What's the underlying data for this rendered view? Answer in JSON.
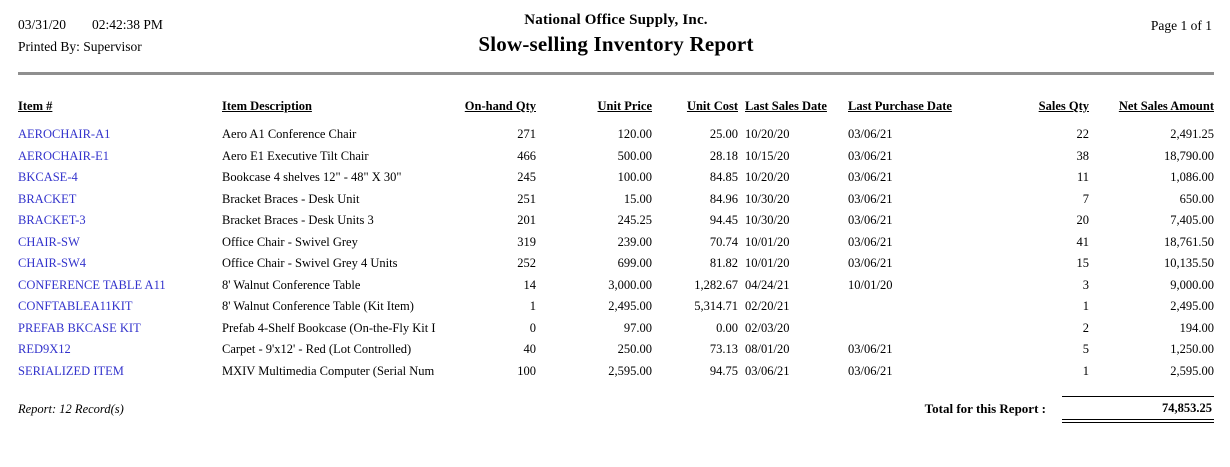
{
  "header": {
    "date": "03/31/20",
    "time": "02:42:38 PM",
    "printed_by": "Printed By: Supervisor",
    "company": "National Office Supply, Inc.",
    "report_title": "Slow-selling Inventory Report",
    "page": "Page 1 of 1"
  },
  "table": {
    "columns": [
      "Item #",
      "Item Description",
      "On-hand Qty",
      "Unit Price",
      "Unit Cost",
      "Last Sales Date",
      "Last Purchase Date",
      "Sales Qty",
      "Net Sales Amount"
    ],
    "rows": [
      {
        "item": "AEROCHAIR-A1",
        "description": "Aero A1 Conference Chair",
        "on_hand_qty": "271",
        "unit_price": "120.00",
        "unit_cost": "25.00",
        "last_sales_date": "10/20/20",
        "last_purchase_date": "03/06/21",
        "sales_qty": "22",
        "net_sales_amount": "2,491.25"
      },
      {
        "item": "AEROCHAIR-E1",
        "description": "Aero E1 Executive Tilt Chair",
        "on_hand_qty": "466",
        "unit_price": "500.00",
        "unit_cost": "28.18",
        "last_sales_date": "10/15/20",
        "last_purchase_date": "03/06/21",
        "sales_qty": "38",
        "net_sales_amount": "18,790.00"
      },
      {
        "item": "BKCASE-4",
        "description": "Bookcase 4 shelves 12\" - 48\" X 30\"",
        "on_hand_qty": "245",
        "unit_price": "100.00",
        "unit_cost": "84.85",
        "last_sales_date": "10/20/20",
        "last_purchase_date": "03/06/21",
        "sales_qty": "11",
        "net_sales_amount": "1,086.00"
      },
      {
        "item": "BRACKET",
        "description": "Bracket Braces - Desk Unit",
        "on_hand_qty": "251",
        "unit_price": "15.00",
        "unit_cost": "84.96",
        "last_sales_date": "10/30/20",
        "last_purchase_date": "03/06/21",
        "sales_qty": "7",
        "net_sales_amount": "650.00"
      },
      {
        "item": "BRACKET-3",
        "description": "Bracket Braces - Desk Units 3",
        "on_hand_qty": "201",
        "unit_price": "245.25",
        "unit_cost": "94.45",
        "last_sales_date": "10/30/20",
        "last_purchase_date": "03/06/21",
        "sales_qty": "20",
        "net_sales_amount": "7,405.00"
      },
      {
        "item": "CHAIR-SW",
        "description": "Office Chair - Swivel Grey",
        "on_hand_qty": "319",
        "unit_price": "239.00",
        "unit_cost": "70.74",
        "last_sales_date": "10/01/20",
        "last_purchase_date": "03/06/21",
        "sales_qty": "41",
        "net_sales_amount": "18,761.50"
      },
      {
        "item": "CHAIR-SW4",
        "description": "Office Chair - Swivel Grey 4 Units",
        "on_hand_qty": "252",
        "unit_price": "699.00",
        "unit_cost": "81.82",
        "last_sales_date": "10/01/20",
        "last_purchase_date": "03/06/21",
        "sales_qty": "15",
        "net_sales_amount": "10,135.50"
      },
      {
        "item": "CONFERENCE TABLE A11",
        "description": "8' Walnut Conference Table",
        "on_hand_qty": "14",
        "unit_price": "3,000.00",
        "unit_cost": "1,282.67",
        "last_sales_date": "04/24/21",
        "last_purchase_date": "10/01/20",
        "sales_qty": "3",
        "net_sales_amount": "9,000.00"
      },
      {
        "item": "CONFTABLEA11KIT",
        "description": "8' Walnut Conference Table (Kit Item)",
        "on_hand_qty": "1",
        "unit_price": "2,495.00",
        "unit_cost": "5,314.71",
        "last_sales_date": "02/20/21",
        "last_purchase_date": "",
        "sales_qty": "1",
        "net_sales_amount": "2,495.00"
      },
      {
        "item": "PREFAB BKCASE KIT",
        "description": "Prefab 4-Shelf Bookcase (On-the-Fly Kit I",
        "on_hand_qty": "0",
        "unit_price": "97.00",
        "unit_cost": "0.00",
        "last_sales_date": "02/03/20",
        "last_purchase_date": "",
        "sales_qty": "2",
        "net_sales_amount": "194.00"
      },
      {
        "item": "RED9X12",
        "description": "Carpet - 9'x12' - Red (Lot Controlled)",
        "on_hand_qty": "40",
        "unit_price": "250.00",
        "unit_cost": "73.13",
        "last_sales_date": "08/01/20",
        "last_purchase_date": "03/06/21",
        "sales_qty": "5",
        "net_sales_amount": "1,250.00"
      },
      {
        "item": "SERIALIZED ITEM",
        "description": "MXIV Multimedia Computer (Serial Num",
        "on_hand_qty": "100",
        "unit_price": "2,595.00",
        "unit_cost": "94.75",
        "last_sales_date": "03/06/21",
        "last_purchase_date": "03/06/21",
        "sales_qty": "1",
        "net_sales_amount": "2,595.00"
      }
    ]
  },
  "footer": {
    "record_count": "Report: 12 Record(s)",
    "total_label": "Total for this Report :",
    "total_value": "74,853.25"
  },
  "colors": {
    "link_blue": "#3333CC",
    "rule_gray": "#8F8F8F"
  }
}
